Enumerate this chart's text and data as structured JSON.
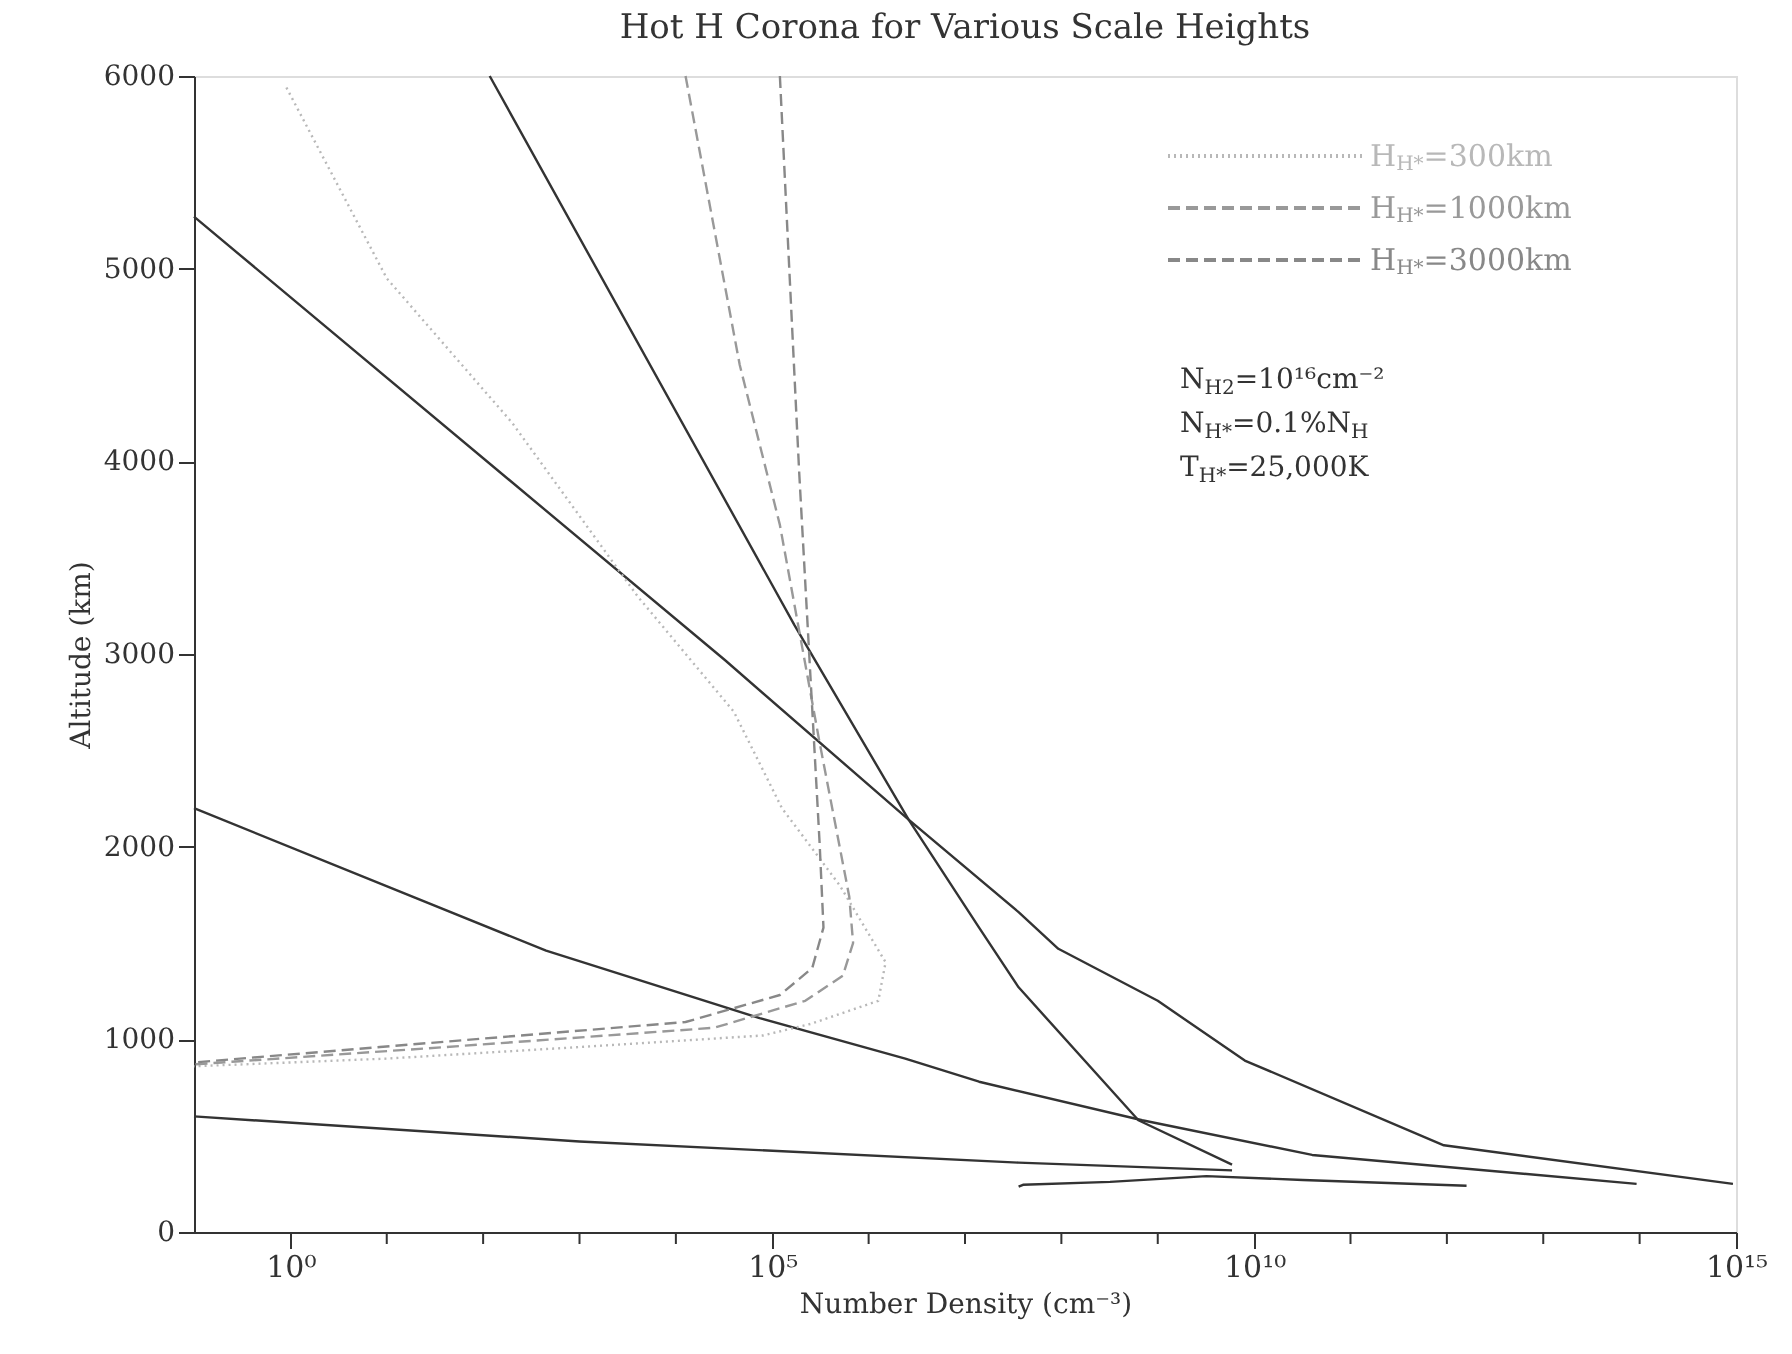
{
  "chart_data": {
    "type": "line",
    "title": "Hot H Corona for Various Scale Heights",
    "xlabel": "Number Density (cm⁻³)",
    "ylabel": "Altitude (km)",
    "log": "x",
    "grid": false,
    "legend": "top right",
    "marker": "none",
    "xlim": [
      0.1,
      1000000000000000.0
    ],
    "xticks": [
      {
        "value": 1,
        "label": "10⁰"
      },
      {
        "value": 10,
        "label": null
      },
      {
        "value": 100,
        "label": null
      },
      {
        "value": 1000,
        "label": null
      },
      {
        "value": 10000,
        "label": null
      },
      {
        "value": 100000,
        "label": "10⁵"
      },
      {
        "value": 1000000.0,
        "label": null
      },
      {
        "value": 10000000.0,
        "label": null
      },
      {
        "value": 100000000.0,
        "label": null
      },
      {
        "value": 1000000000.0,
        "label": null
      },
      {
        "value": 10000000000.0,
        "label": "10¹⁰"
      },
      {
        "value": 100000000000.0,
        "label": null
      },
      {
        "value": 1000000000000.0,
        "label": null
      },
      {
        "value": 10000000000000.0,
        "label": null
      },
      {
        "value": 100000000000000.0,
        "label": null
      },
      {
        "value": 1000000000000000.0,
        "label": "10¹⁵"
      }
    ],
    "ylim": [
      0,
      6000
    ],
    "yticks": [
      0,
      1000,
      2000,
      3000,
      4000,
      5000,
      6000
    ],
    "annotations": [
      "N$_{H2}$=10¹⁶cm⁻²",
      "N$_{H*}$=0.1%N$_{H}$",
      "T$_{H*}$=25,000K"
    ],
    "series": [
      {
        "color": "#333333",
        "line_style": "solid",
        "x": [
          117,
          170000.0,
          2600000.0,
          14000000.0,
          36000000.0,
          630000000.0,
          5900000000.0
        ],
        "values": [
          6000,
          3150,
          2140,
          1580,
          1270,
          580,
          350
        ]
      },
      {
        "color": "#333333",
        "line_style": "solid",
        "x": [
          0.1,
          32000.0,
          2600000.0,
          36000000.0,
          93000000.0,
          1000000000.0,
          8000000000.0,
          930000000000.0,
          930000000000000.0
        ],
        "values": [
          5270,
          2970,
          2140,
          1660,
          1470,
          1200,
          890,
          450,
          250
        ]
      },
      {
        "color": "#333333",
        "line_style": "solid",
        "x": [
          0.1,
          450,
          74000.0,
          2400000.0,
          14000000.0,
          690000000.0,
          40000000000.0,
          93000000000000.0
        ],
        "values": [
          2200,
          1460,
          1110,
          900,
          780,
          580,
          400,
          250
        ]
      },
      {
        "color": "#333333",
        "line_style": "solid",
        "x": [
          0.1,
          1000,
          36000000.0,
          5900000000.0
        ],
        "values": [
          600,
          470,
          360,
          320
        ]
      },
      {
        "color": "#333333",
        "line_style": "solid",
        "x": [
          36000000.0,
          40000000.0,
          320000000.0,
          3200000000.0,
          32000000000.0,
          1600000000000.0
        ],
        "values": [
          235,
          245,
          260,
          290,
          270,
          240
        ]
      },
      {
        "name": "H$_{H*}$=300km",
        "color": "#b8b8b8",
        "line_style": "dotted",
        "x": [
          0.91,
          10,
          200,
          4000,
          40000.0,
          126000.0,
          500000.0,
          1500000.0,
          1260000.0,
          250000.0,
          80000.0,
          1000,
          10,
          0.1
        ],
        "values": [
          5940,
          4950,
          4200,
          3300,
          2700,
          2200,
          1800,
          1400,
          1200,
          1080,
          1020,
          960,
          900,
          860
        ]
      },
      {
        "name": "H$_{H*}$=1000km",
        "color": "#999999",
        "line_style": "dashed",
        "x": [
          12600.0,
          46000.0,
          120000.0,
          310000.0,
          630000.0,
          690000.0,
          540000.0,
          220000.0,
          25000.0,
          41,
          0.1
        ],
        "values": [
          6000,
          4500,
          3670,
          2540,
          1740,
          1500,
          1330,
          1200,
          1060,
          960,
          870
        ]
      },
      {
        "name": "H$_{H*}$=3000km",
        "color": "#888888",
        "line_style": "dashed",
        "x": [
          120000.0,
          190000.0,
          310000.0,
          340000.0,
          260000.0,
          120000.0,
          12600.0,
          8.5,
          0.1
        ],
        "values": [
          6000,
          3950,
          2020,
          1580,
          1370,
          1230,
          1090,
          960,
          880
        ]
      }
    ]
  }
}
